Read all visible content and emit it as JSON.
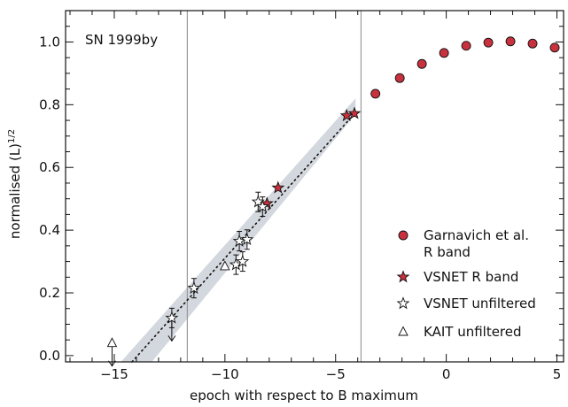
{
  "chart_data": {
    "type": "scatter",
    "title": "SN 1999by",
    "xlabel": "epoch with respect to B maximum",
    "ylabel": "normalised (L)",
    "ylabel_sup": "1/2",
    "xlim": [
      -17.2,
      5.3
    ],
    "ylim": [
      -0.02,
      1.1
    ],
    "x_ticks": [
      -15,
      -10,
      -5,
      0,
      5
    ],
    "x_tick_labels": [
      "−15",
      "−10",
      "−5",
      "0",
      "5"
    ],
    "y_ticks": [
      0.0,
      0.2,
      0.4,
      0.6,
      0.8,
      1.0
    ],
    "y_tick_labels": [
      "0.0",
      "0.2",
      "0.4",
      "0.6",
      "0.8",
      "1.0"
    ],
    "vertical_lines": [
      -11.7,
      -3.85
    ],
    "fit_line": {
      "x": [
        -14.2,
        -4.1
      ],
      "y": [
        -0.02,
        0.775
      ]
    },
    "fit_band": {
      "x": [
        -14.7,
        -13.3,
        -4.1,
        -4.1
      ],
      "y_upper_at_start": -0.02,
      "y_lower_at_end": 0.77,
      "y_upper_at_end": 0.82
    },
    "series": [
      {
        "name": "Garnavich et al. R band",
        "marker": "circle",
        "color": "#c8323e",
        "x": [
          -3.2,
          -2.1,
          -1.1,
          -0.1,
          0.9,
          1.9,
          2.9,
          3.9,
          4.9
        ],
        "y": [
          0.835,
          0.885,
          0.93,
          0.965,
          0.988,
          0.998,
          1.002,
          0.995,
          0.982
        ]
      },
      {
        "name": "VSNET R band",
        "marker": "star-filled",
        "color": "#c8323e",
        "x": [
          -8.1,
          -7.6,
          -4.5,
          -4.15
        ],
        "y": [
          0.485,
          0.535,
          0.765,
          0.772
        ]
      },
      {
        "name": "VSNET unfiltered",
        "marker": "star-open",
        "color": "#ffffff",
        "x": [
          -12.4,
          -11.4,
          -9.5,
          -9.2,
          -9.35,
          -9.0,
          -8.5,
          -8.3
        ],
        "y": [
          0.12,
          0.215,
          0.29,
          0.3,
          0.365,
          0.37,
          0.49,
          0.475
        ]
      },
      {
        "name": "KAIT unfiltered",
        "marker": "triangle-open",
        "color": "#ffffff",
        "x": [
          -15.1,
          -10.0
        ],
        "y": [
          0.04,
          0.285
        ]
      }
    ],
    "upper_limits": [
      {
        "x": -15.1,
        "y": 0.04
      },
      {
        "x": -12.4,
        "y": 0.12
      }
    ],
    "legend_placement": "right",
    "legend": [
      {
        "marker": "circle",
        "label_line1": "Garnavich et al.",
        "label_line2": "R band"
      },
      {
        "marker": "star-filled",
        "label_line1": "VSNET R band",
        "label_line2": ""
      },
      {
        "marker": "star-open",
        "label_line1": "VSNET unfiltered",
        "label_line2": ""
      },
      {
        "marker": "triangle-open",
        "label_line1": "KAIT unfiltered",
        "label_line2": ""
      }
    ],
    "colors": {
      "axis": "#111111",
      "vline": "#999999",
      "band": "#d3d7de",
      "marker_fill_red": "#c8323e"
    }
  }
}
